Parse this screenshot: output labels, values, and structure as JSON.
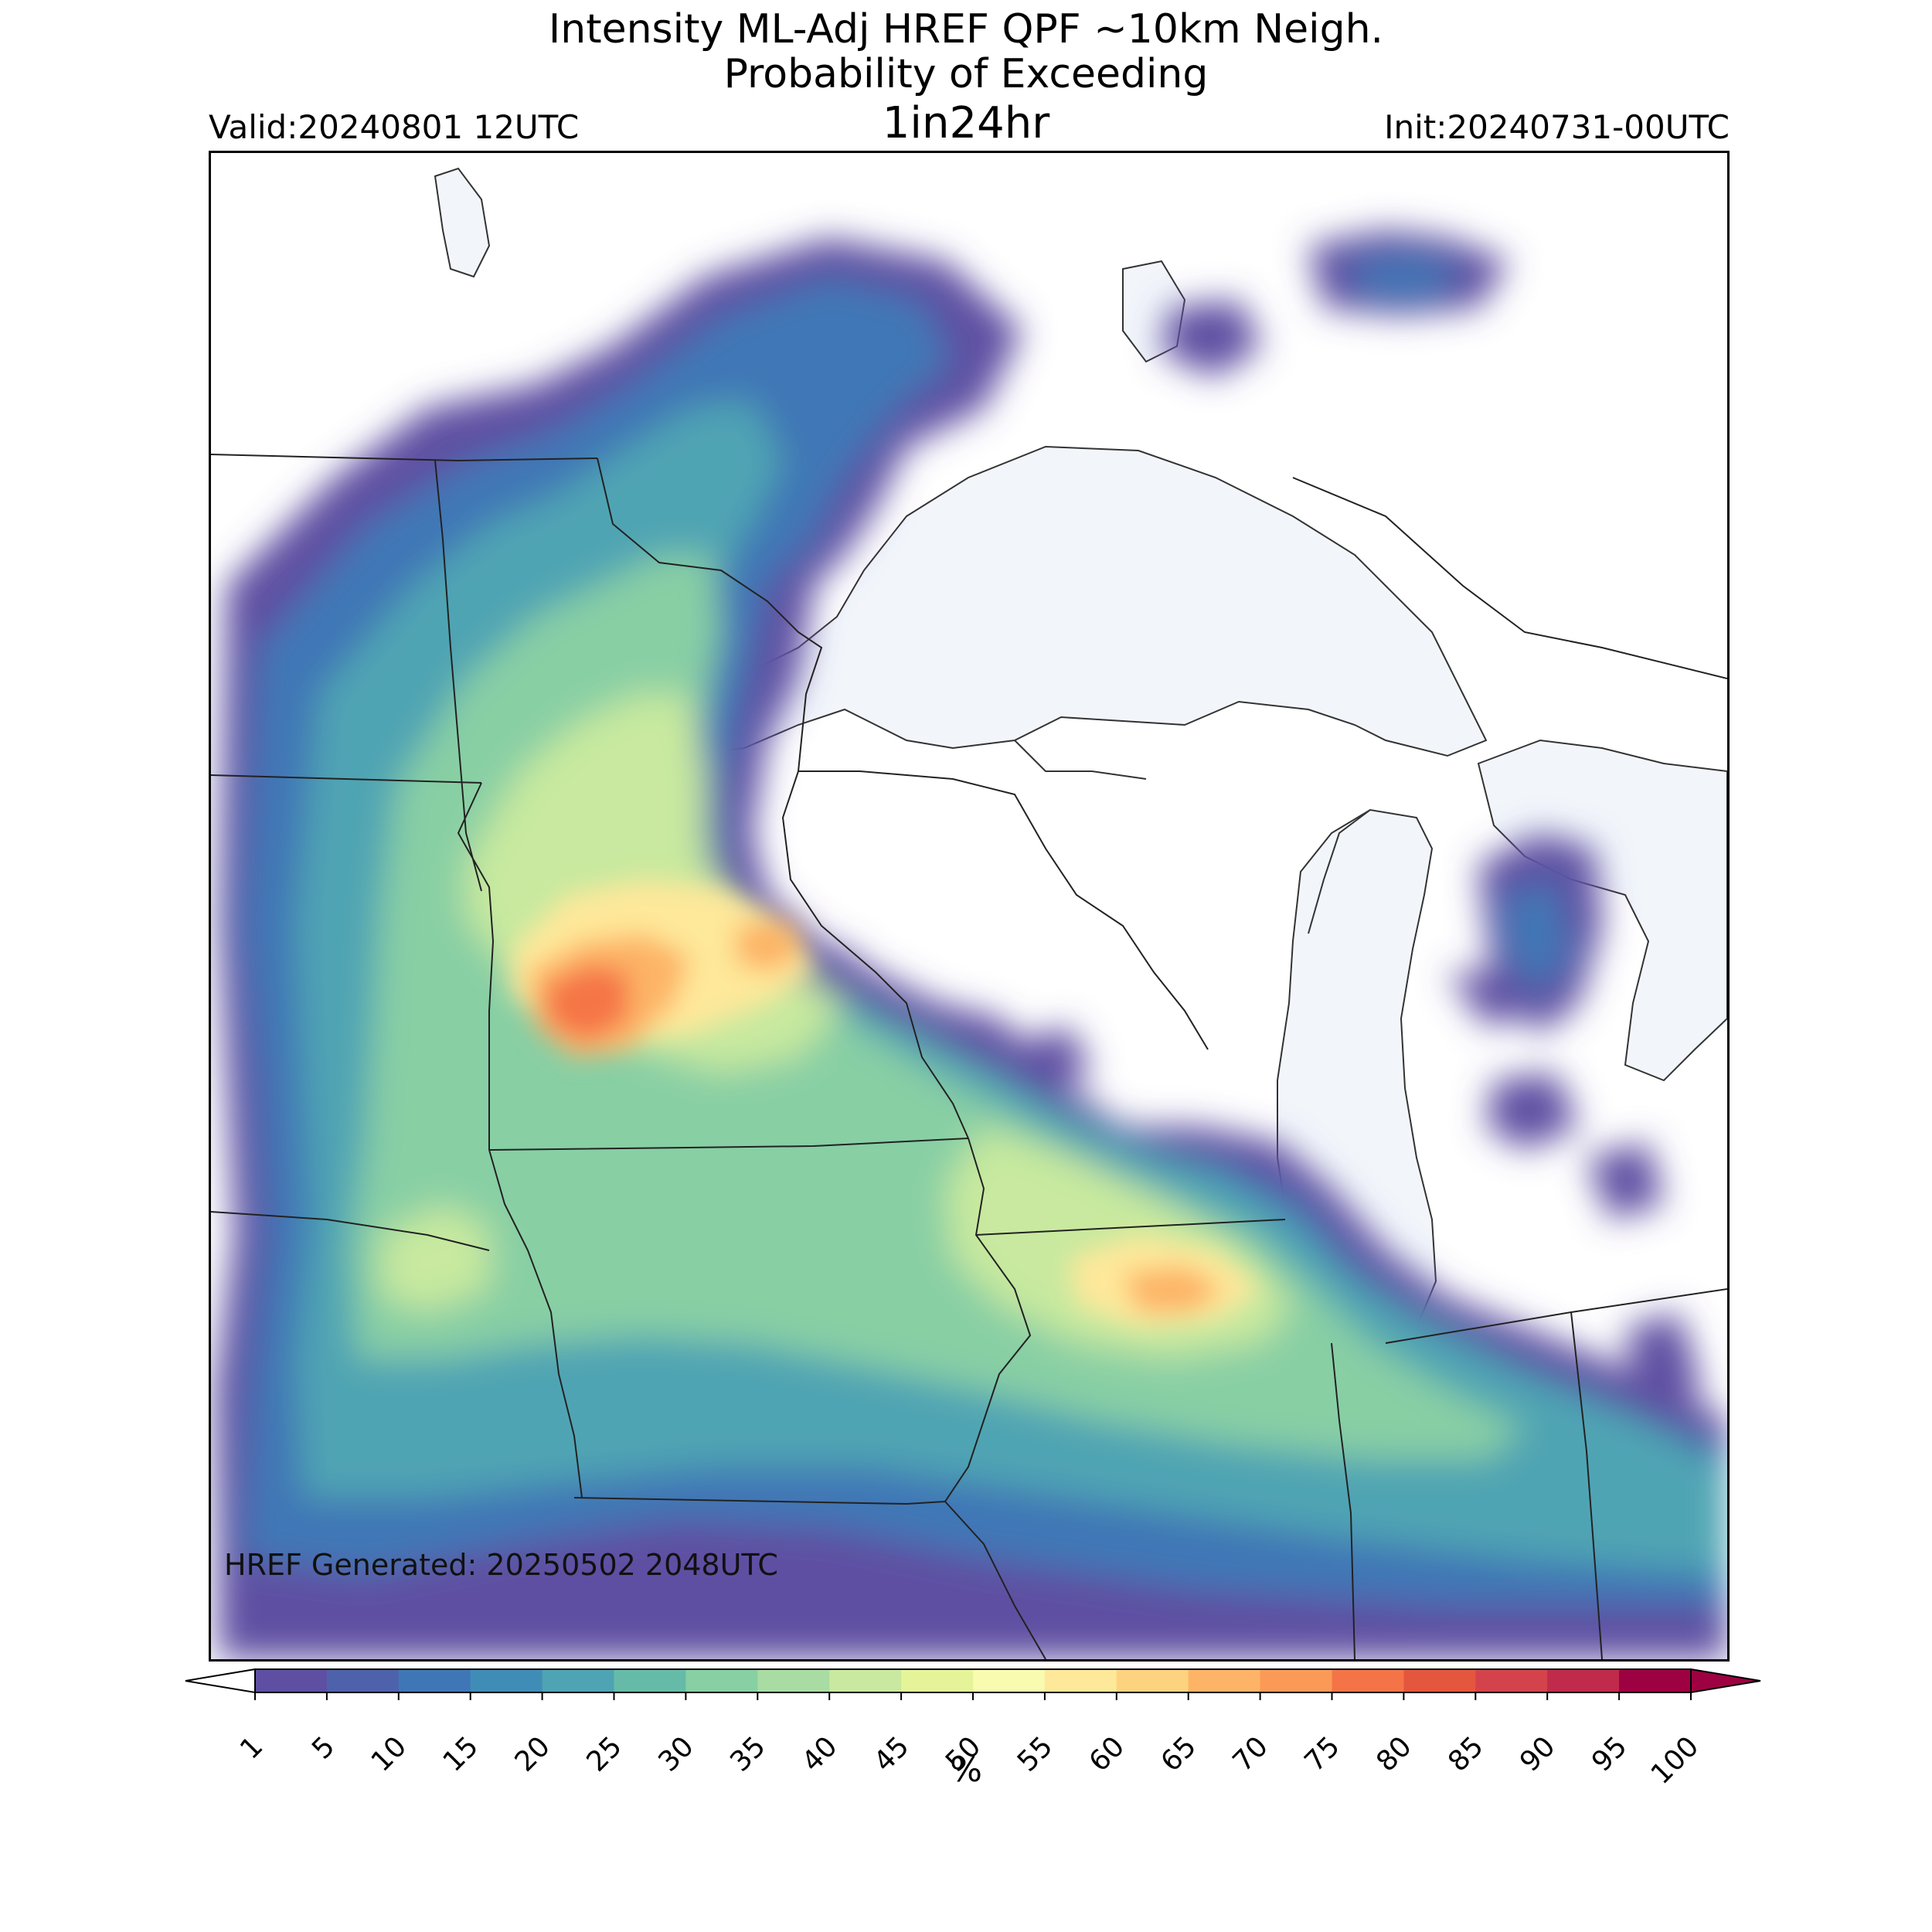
{
  "header": {
    "title_line1": "Intensity ML-Adj HREF QPF ~10km Neigh.",
    "title_line2": "Probability of Exceeding",
    "title_line3": "1in24hr",
    "valid": "Valid:20240801 12UTC",
    "init": "Init:20240731-00UTC"
  },
  "map": {
    "region": "Upper Midwest / Great Lakes",
    "generated_label": "HREF Generated: 20250502 2048UTC",
    "water_color": "#f2f6fb",
    "land_color": "#ffffff",
    "max_probability_areas": [
      "central Minnesota",
      "northern Illinois / Indiana"
    ]
  },
  "colorbar": {
    "unit_label": "%",
    "levels": [
      "1",
      "5",
      "10",
      "15",
      "20",
      "25",
      "30",
      "35",
      "40",
      "45",
      "50",
      "55",
      "60",
      "65",
      "70",
      "75",
      "80",
      "85",
      "90",
      "95",
      "100"
    ],
    "colors": [
      "#5e4fa2",
      "#4e62ab",
      "#3f77b6",
      "#3f8db7",
      "#4fa4b3",
      "#66bba8",
      "#88cfa4",
      "#a9dca3",
      "#c8e99f",
      "#e5f498",
      "#f8fbb0",
      "#fee89a",
      "#fed380",
      "#fdb466",
      "#fb9a57",
      "#f57447",
      "#e5563f",
      "#d4434b",
      "#c02a4b",
      "#9e0142"
    ]
  }
}
